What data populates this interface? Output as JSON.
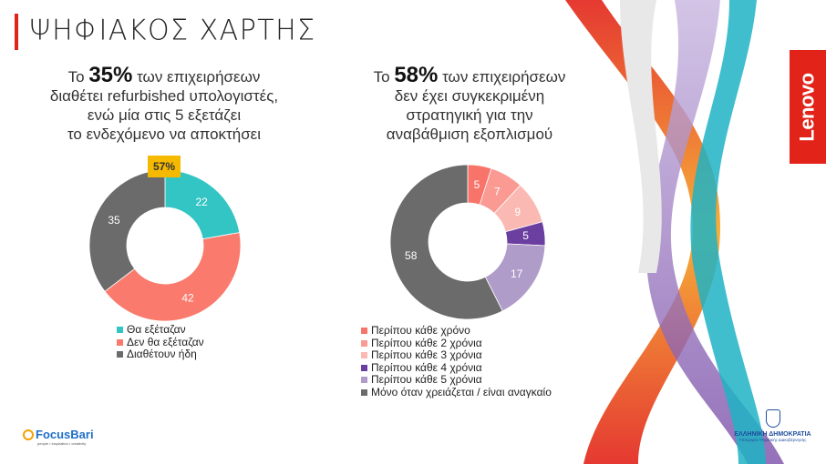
{
  "title": "ΨΗΦΙΑΚΟΣ ΧΑΡΤΗΣ",
  "brand": "Lenovo",
  "left": {
    "headline_pre": "Το ",
    "headline_pct": "35%",
    "headline_post": " των επιχειρήσεων",
    "headline_lines": [
      "διαθέτει refurbished υπολογιστές,",
      "ενώ μία στις 5 εξετάζει",
      "το ενδεχόμενο να αποκτήσει"
    ],
    "badge": "57%"
  },
  "right": {
    "headline_pre": "Το ",
    "headline_pct": "58%",
    "headline_post": " των επιχειρήσεων",
    "headline_lines": [
      "δεν έχει συγκεκριμένη",
      "στρατηγική για την",
      "αναβάθμιση εξοπλισμού"
    ]
  },
  "chart_data": [
    {
      "type": "pie",
      "donut": true,
      "categories": [
        "Θα εξέταζαν",
        "Δεν θα εξέταζαν",
        "Διαθέτουν ήδη"
      ],
      "values": [
        22,
        42,
        35
      ],
      "colors": [
        "#33c4c4",
        "#fa7b6e",
        "#6b6b6b"
      ]
    },
    {
      "type": "pie",
      "donut": true,
      "categories": [
        "Περίπου κάθε χρόνο",
        "Περίπου κάθε 2 χρόνια",
        "Περίπου κάθε 3 χρόνια",
        "Περίπου κάθε 4 χρόνια",
        "Περίπου κάθε 5 χρόνια",
        "Μόνο όταν χρειάζεται / είναι αναγκαίο"
      ],
      "values": [
        5,
        7,
        9,
        5,
        17,
        58
      ],
      "colors": [
        "#f8746a",
        "#fa9a92",
        "#fbb9b3",
        "#6b3fa0",
        "#b09cc9",
        "#6b6b6b"
      ]
    }
  ],
  "footer": {
    "focusbari": "FocusBari",
    "focusbari_tag": "people • inspiration • creativity",
    "gov": "ΕΛΛΗΝΙΚΗ ΔΗΜΟΚΡΑΤΙΑ",
    "gov_sub": "Υπουργείο Ψηφιακής Διακυβέρνησης"
  }
}
